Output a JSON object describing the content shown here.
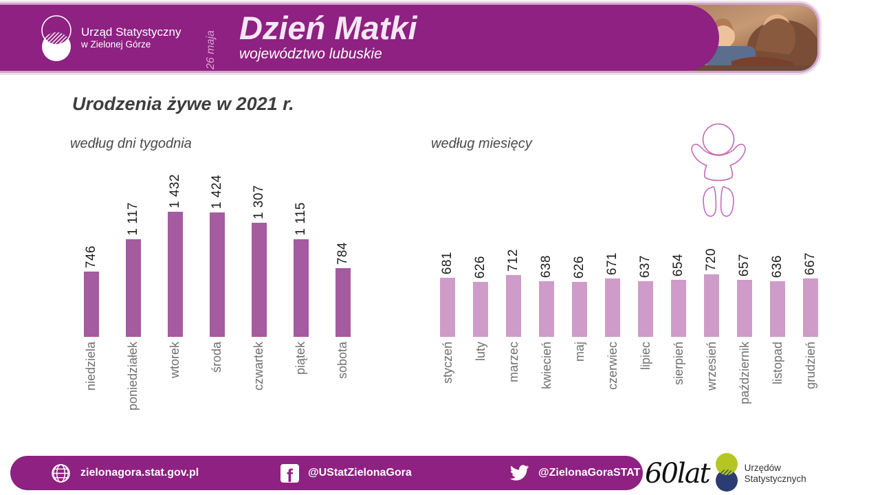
{
  "header": {
    "logo": {
      "line1": "Urząd Statystyczny",
      "line2": "w Zielonej Górze"
    },
    "date_vertical": "26 maja",
    "title": "Dzień Matki",
    "subtitle": "województwo lubuskie"
  },
  "page_title": "Urodzenia żywe w 2021 r.",
  "chart_data": [
    {
      "type": "bar",
      "title": "według dni tygodnia",
      "categories": [
        "niedziela",
        "poniedziałek",
        "wtorek",
        "środa",
        "czwartek",
        "piątek",
        "sobota"
      ],
      "values": [
        746,
        1117,
        1432,
        1424,
        1307,
        1115,
        784
      ],
      "values_display": [
        "746",
        "1 117",
        "1 432",
        "1 424",
        "1 307",
        "1 115",
        "784"
      ],
      "bar_color": "#a55ba0",
      "ylim": [
        0,
        1500
      ],
      "grid": false,
      "axes_hidden": true,
      "value_labels": "rotated -90, above bars",
      "category_labels": "rotated -90, below bars"
    },
    {
      "type": "bar",
      "title": "według miesięcy",
      "categories": [
        "styczeń",
        "luty",
        "marzec",
        "kwiecień",
        "maj",
        "czerwiec",
        "lipiec",
        "sierpień",
        "wrzesień",
        "październik",
        "listopad",
        "grudzień"
      ],
      "values": [
        681,
        626,
        712,
        638,
        626,
        671,
        637,
        654,
        720,
        657,
        636,
        667
      ],
      "values_display": [
        "681",
        "626",
        "712",
        "638",
        "626",
        "671",
        "637",
        "654",
        "720",
        "657",
        "636",
        "667"
      ],
      "bar_color": "#cf9bc8",
      "ylim": [
        0,
        1500
      ],
      "grid": false,
      "axes_hidden": true,
      "value_labels": "rotated -90, above bars",
      "category_labels": "rotated -90, below bars"
    }
  ],
  "footer": {
    "website": "zielonagora.stat.gov.pl",
    "facebook": "@UStatZielonaGora",
    "twitter": "@ZielonaGoraSTAT",
    "anniversary": {
      "number": "60",
      "word": "lat",
      "line1": "Urzędów",
      "line2": "Statystycznych"
    }
  },
  "colors": {
    "header_purple": "#8e2181",
    "border_light": "#cfa5cb",
    "bars_days": "#a55ba0",
    "bars_months": "#cf9bc8",
    "value_text": "#1c1c1c",
    "category_text": "#6f6f6f",
    "baby_outline": "#c76ab7",
    "anniversary_green": "#b5c623",
    "anniversary_navy": "#2b3c72"
  }
}
